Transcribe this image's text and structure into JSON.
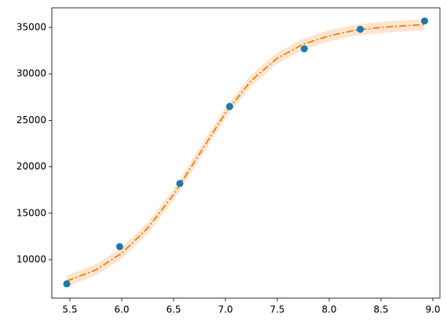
{
  "chart_data": {
    "type": "scatter",
    "x": [
      5.47,
      5.98,
      6.56,
      7.04,
      7.76,
      8.3,
      8.92
    ],
    "values": [
      7400,
      11400,
      18200,
      26500,
      32700,
      34800,
      35700
    ],
    "color": "#1f77b4",
    "fit": {
      "type": "line",
      "linestyle": "dashdot",
      "color": "#ff7f0e",
      "x": [
        5.47,
        5.75,
        6.0,
        6.25,
        6.5,
        6.75,
        7.0,
        7.25,
        7.5,
        7.75,
        8.0,
        8.25,
        8.5,
        8.75,
        8.92
      ],
      "values": [
        7700,
        8900,
        10700,
        13400,
        17000,
        21400,
        25800,
        29300,
        31700,
        33200,
        34100,
        34700,
        35000,
        35200,
        35300
      ],
      "lower": [
        7100,
        8300,
        10100,
        12800,
        16400,
        20800,
        25200,
        28700,
        31100,
        32600,
        33500,
        34100,
        34400,
        34600,
        34700
      ],
      "upper": [
        8300,
        9500,
        11300,
        14000,
        17600,
        22000,
        26400,
        29900,
        32300,
        33800,
        34700,
        35300,
        35600,
        35800,
        35900
      ]
    },
    "xlim": [
      5.326,
      9.068
    ],
    "ylim": [
      5862,
      37111
    ],
    "xticks": [
      5.5,
      {
        "value": 6,
        "label": "6.0"
      },
      6.5,
      {
        "value": 7,
        "label": "7.0"
      },
      7.5,
      {
        "value": 8,
        "label": "8.0"
      },
      8.5,
      {
        "value": 9,
        "label": "9.0"
      }
    ],
    "yticks": [
      10000,
      15000,
      20000,
      25000,
      30000,
      35000
    ]
  }
}
